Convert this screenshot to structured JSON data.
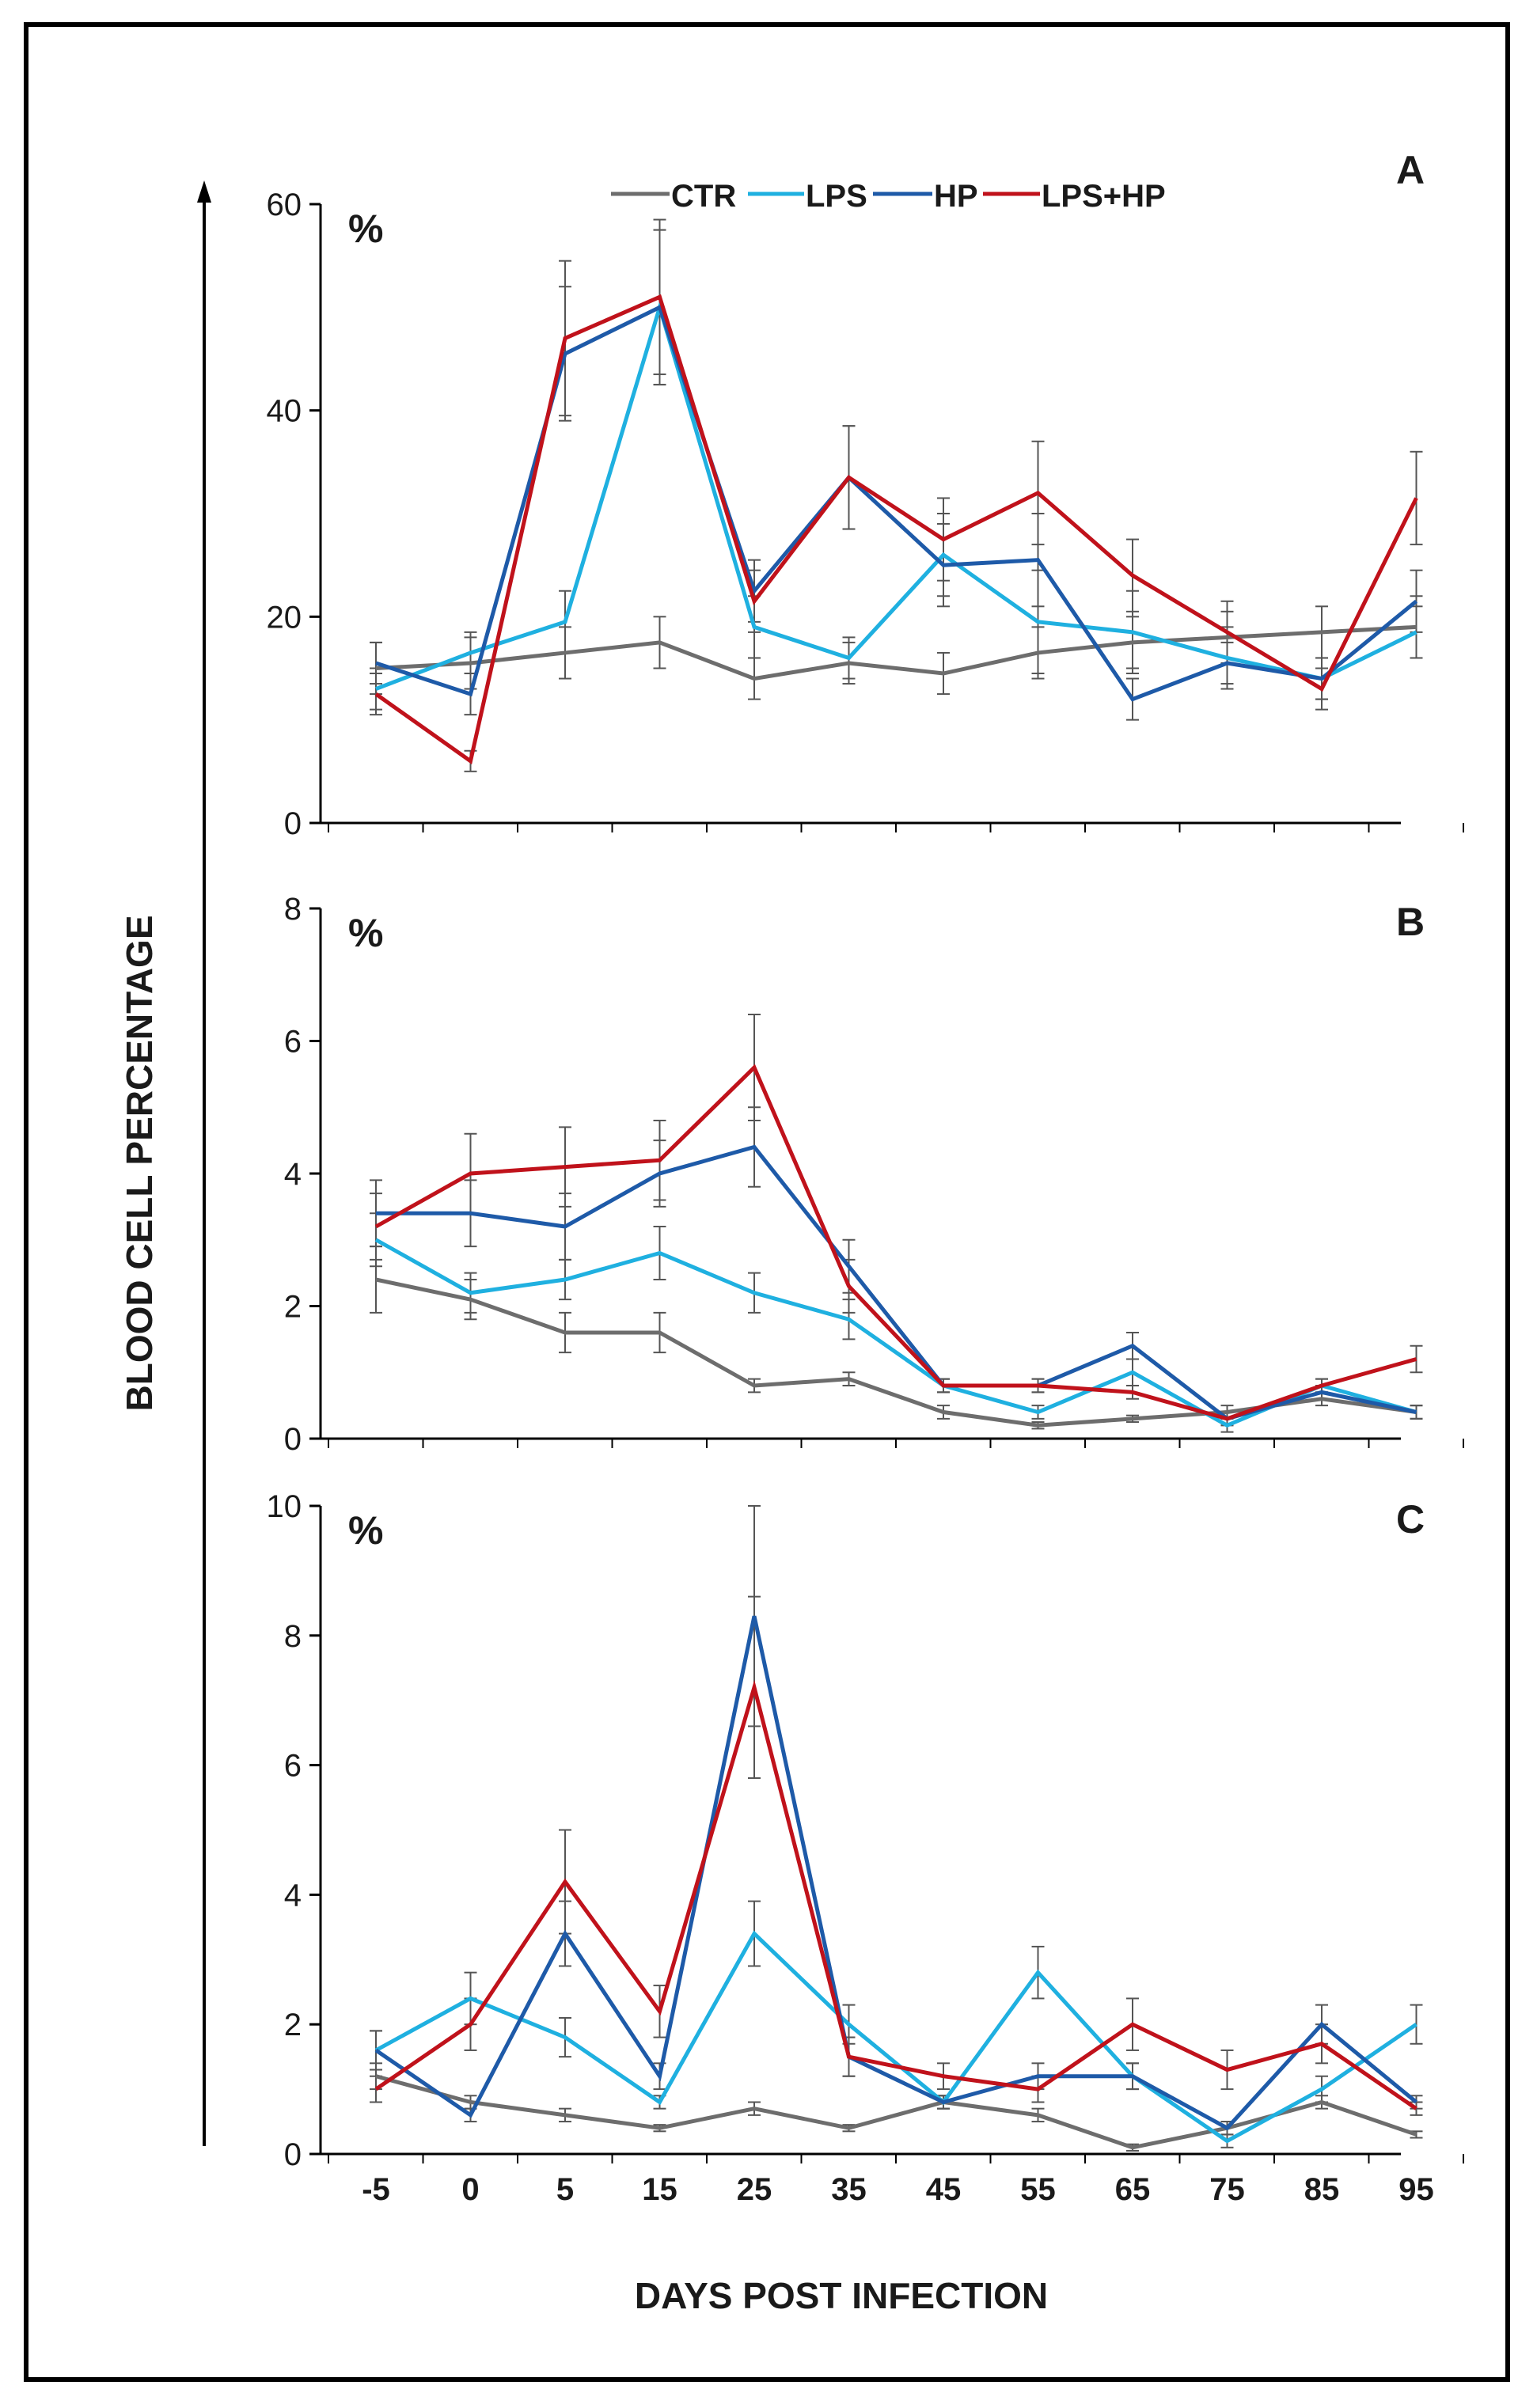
{
  "figure": {
    "ylabel": "BLOOD CELL PERCENTAGE",
    "xlabel": "DAYS POST INFECTION",
    "unit_label": "%"
  },
  "legend": [
    {
      "name": "CTR",
      "color": "#6d6d6d"
    },
    {
      "name": "LPS",
      "color": "#1fb0e0"
    },
    {
      "name": "HP",
      "color": "#1e5aa8"
    },
    {
      "name": "LPS+HP",
      "color": "#c0121b"
    }
  ],
  "chart_data": [
    {
      "type": "line",
      "panel": "A",
      "x": [
        "-5",
        "0",
        "5",
        "15",
        "25",
        "35",
        "45",
        "55",
        "65",
        "75",
        "85",
        "95"
      ],
      "ylim": [
        0,
        60
      ],
      "yticks": [
        0,
        20,
        40,
        60
      ],
      "series": [
        {
          "name": "CTR",
          "values": [
            15,
            15.5,
            16.5,
            17.5,
            14,
            15.5,
            14.5,
            16.5,
            17.5,
            18,
            18.5,
            19
          ],
          "errors": [
            2.5,
            2.5,
            2.5,
            2.5,
            2,
            2,
            2,
            2.5,
            2.5,
            2.5,
            2.5,
            3
          ]
        },
        {
          "name": "LPS",
          "values": [
            13,
            16.5,
            19.5,
            50,
            19,
            16,
            26,
            19.5,
            18.5,
            16,
            14,
            18.5
          ],
          "errors": [
            2,
            2,
            3,
            7.5,
            3,
            2,
            4,
            5,
            4,
            3,
            2,
            2.5
          ]
        },
        {
          "name": "HP",
          "values": [
            15.5,
            12.5,
            45.5,
            50,
            22.5,
            33.5,
            25,
            25.5,
            12,
            15.5,
            14,
            21.5
          ],
          "errors": [
            2,
            2,
            6.5,
            7.5,
            3,
            5,
            4,
            4.5,
            2,
            2,
            2,
            3
          ]
        },
        {
          "name": "LPS+HP",
          "values": [
            12.5,
            6,
            47,
            51,
            21.5,
            33.5,
            27.5,
            32,
            24,
            18.5,
            13,
            31.5
          ],
          "errors": [
            2,
            1,
            7.5,
            7.5,
            3,
            5,
            4,
            5,
            3.5,
            3,
            2,
            4.5
          ]
        }
      ]
    },
    {
      "type": "line",
      "panel": "B",
      "x": [
        "-5",
        "0",
        "5",
        "15",
        "25",
        "35",
        "45",
        "55",
        "65",
        "75",
        "85",
        "95"
      ],
      "ylim": [
        0,
        8
      ],
      "yticks": [
        0,
        2,
        4,
        6,
        8
      ],
      "series": [
        {
          "name": "CTR",
          "values": [
            2.4,
            2.1,
            1.6,
            1.6,
            0.8,
            0.9,
            0.4,
            0.2,
            0.3,
            0.4,
            0.6,
            0.4
          ],
          "errors": [
            0.5,
            0.3,
            0.3,
            0.3,
            0.1,
            0.1,
            0.1,
            0.05,
            0.05,
            0.1,
            0.1,
            0.1
          ]
        },
        {
          "name": "LPS",
          "values": [
            3.0,
            2.2,
            2.4,
            2.8,
            2.2,
            1.8,
            0.8,
            0.4,
            1.0,
            0.2,
            0.8,
            0.4
          ],
          "errors": [
            0.4,
            0.3,
            0.3,
            0.4,
            0.3,
            0.3,
            0.1,
            0.1,
            0.2,
            0.1,
            0.1,
            0.1
          ]
        },
        {
          "name": "HP",
          "values": [
            3.4,
            3.4,
            3.2,
            4.0,
            4.4,
            2.6,
            0.8,
            0.8,
            1.4,
            0.3,
            0.7,
            0.4
          ],
          "errors": [
            0.5,
            0.5,
            0.5,
            0.5,
            0.6,
            0.4,
            0.1,
            0.1,
            0.2,
            0.1,
            0.1,
            0.1
          ]
        },
        {
          "name": "LPS+HP",
          "values": [
            3.2,
            4.0,
            4.1,
            4.2,
            5.6,
            2.3,
            0.8,
            0.8,
            0.7,
            0.3,
            0.8,
            1.2
          ],
          "errors": [
            0.5,
            0.6,
            0.6,
            0.6,
            0.8,
            0.4,
            0.1,
            0.1,
            0.1,
            0.1,
            0.1,
            0.2
          ]
        }
      ]
    },
    {
      "type": "line",
      "panel": "C",
      "x": [
        "-5",
        "0",
        "5",
        "15",
        "25",
        "35",
        "45",
        "55",
        "65",
        "75",
        "85",
        "95"
      ],
      "ylim": [
        0,
        10
      ],
      "yticks": [
        0,
        2,
        4,
        6,
        8,
        10
      ],
      "series": [
        {
          "name": "CTR",
          "values": [
            1.2,
            0.8,
            0.6,
            0.4,
            0.7,
            0.4,
            0.8,
            0.6,
            0.1,
            0.4,
            0.8,
            0.3
          ],
          "errors": [
            0.2,
            0.1,
            0.1,
            0.05,
            0.1,
            0.05,
            0.1,
            0.1,
            0.05,
            0.1,
            0.1,
            0.05
          ]
        },
        {
          "name": "LPS",
          "values": [
            1.6,
            2.4,
            1.8,
            0.8,
            3.4,
            2.0,
            0.8,
            2.8,
            1.2,
            0.2,
            1.0,
            2.0
          ],
          "errors": [
            0.3,
            0.4,
            0.3,
            0.1,
            0.5,
            0.3,
            0.1,
            0.4,
            0.2,
            0.1,
            0.2,
            0.3
          ]
        },
        {
          "name": "HP",
          "values": [
            1.6,
            0.6,
            3.4,
            1.2,
            8.3,
            1.5,
            0.8,
            1.2,
            1.2,
            0.4,
            2.0,
            0.8
          ],
          "errors": [
            0.3,
            0.1,
            0.5,
            0.2,
            1.7,
            0.3,
            0.1,
            0.2,
            0.2,
            0.1,
            0.3,
            0.1
          ]
        },
        {
          "name": "LPS+HP",
          "values": [
            1.0,
            2.0,
            4.2,
            2.2,
            7.2,
            1.5,
            1.2,
            1.0,
            2.0,
            1.3,
            1.7,
            0.7
          ],
          "errors": [
            0.2,
            0.4,
            0.8,
            0.4,
            1.4,
            0.3,
            0.2,
            0.2,
            0.4,
            0.3,
            0.3,
            0.1
          ]
        }
      ]
    }
  ]
}
